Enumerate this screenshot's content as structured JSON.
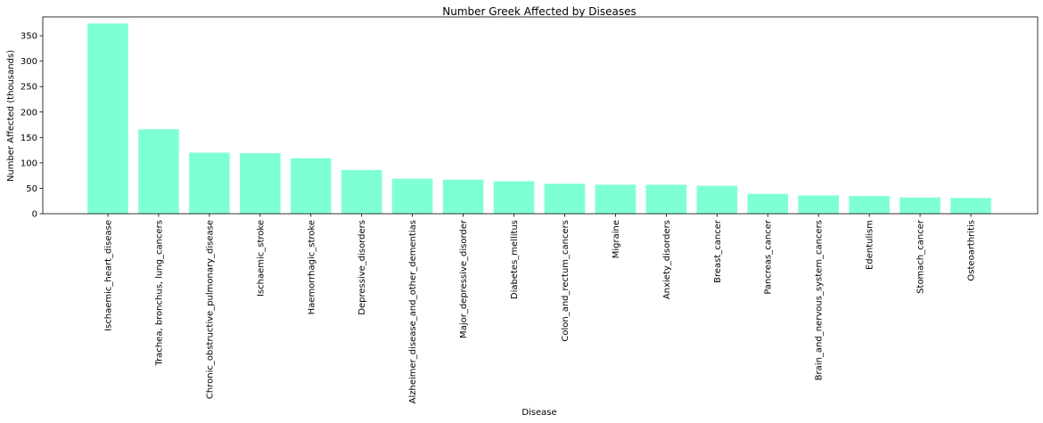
{
  "chart_data": {
    "type": "bar",
    "title": "Number Greek Affected by Diseases",
    "xlabel": "Disease",
    "ylabel": "Number Affected (thousands)",
    "ylim": [
      0,
      387
    ],
    "yticks": [
      0,
      50,
      100,
      150,
      200,
      250,
      300,
      350
    ],
    "grid": false,
    "bar_color": "#7fffd4",
    "categories": [
      "Ischaemic_heart_disease",
      "Trachea, bronchus, lung_cancers",
      "Chronic_obstructive_pulmonary_disease",
      "Ischaemic_stroke",
      "Haemorrhagic_stroke",
      "Depressive_disorders",
      "Alzheimer_disease_and_other_dementias",
      "Major_depressive_disorder",
      "Diabetes_mellitus",
      "Colon_and_rectum_cancers",
      "Migraine",
      "Anxiety_disorders",
      "Breast_cancer",
      "Pancreas_cancer",
      "Brain_and_nervous_system_cancers",
      "Edentulism",
      "Stomach_cancer",
      "Osteoarthritis"
    ],
    "values": [
      374,
      166,
      120,
      119,
      109,
      86,
      69,
      67,
      64,
      59,
      57,
      57,
      55,
      39,
      36,
      35,
      32,
      31
    ]
  }
}
